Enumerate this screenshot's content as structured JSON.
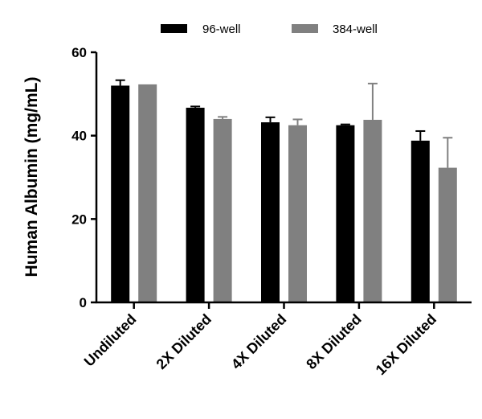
{
  "chart_data": {
    "type": "bar",
    "title": "",
    "xlabel": "",
    "ylabel": "Human Albumin (mg/mL)",
    "ylim": [
      0,
      60
    ],
    "yticks": [
      0,
      20,
      40,
      60
    ],
    "categories": [
      "Undiluted",
      "2X Diluted",
      "4X Diluted",
      "8X Diluted",
      "16X Diluted"
    ],
    "series": [
      {
        "name": "96-well",
        "color": "#000000",
        "values": [
          52.0,
          46.7,
          43.2,
          42.5,
          38.8
        ],
        "errors": [
          1.3,
          0.3,
          1.2,
          0.2,
          2.3
        ]
      },
      {
        "name": "384-well",
        "color": "#808080",
        "values": [
          52.3,
          44.0,
          42.5,
          43.8,
          32.3
        ],
        "errors": [
          0.0,
          0.5,
          1.4,
          8.7,
          7.2
        ]
      }
    ],
    "legend_position": "top"
  }
}
